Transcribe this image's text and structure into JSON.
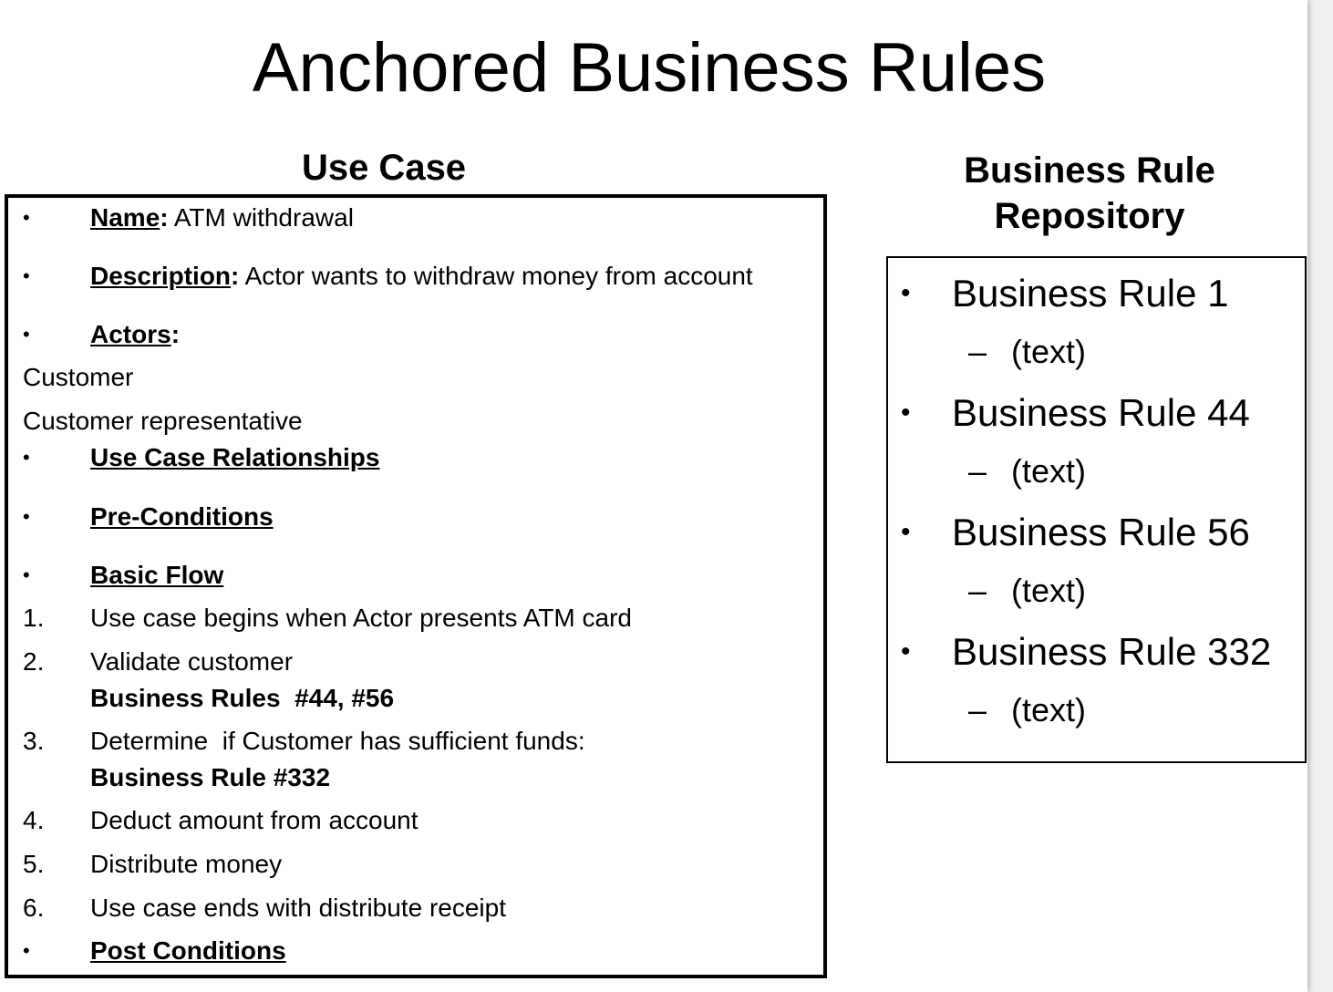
{
  "title": "Anchored Business Rules",
  "use_case": {
    "heading": "Use Case",
    "name_label": "Name",
    "name_value": "ATM withdrawal",
    "description_label": "Description",
    "description_value": "Actor wants to withdraw money from account",
    "actors_label": "Actors",
    "actors": [
      "Customer",
      "Customer representative"
    ],
    "relationships_label": "Use Case Relationships",
    "preconditions_label": "Pre-Conditions",
    "basic_flow_label": "Basic Flow",
    "steps": [
      {
        "num": "1.",
        "text": "Use case begins when Actor presents ATM card",
        "rule": ""
      },
      {
        "num": "2.",
        "text": "Validate customer",
        "rule": "Business Rules  #44, #56"
      },
      {
        "num": "3.",
        "text": "Determine  if Customer has sufficient funds:",
        "rule": "Business Rule #332"
      },
      {
        "num": "4.",
        "text": "Deduct amount from account",
        "rule": ""
      },
      {
        "num": "5.",
        "text": "Distribute money",
        "rule": ""
      },
      {
        "num": "6.",
        "text": "Use case ends with distribute receipt",
        "rule": ""
      }
    ],
    "postconditions_label": "Post Conditions"
  },
  "repository": {
    "heading_line1": "Business Rule",
    "heading_line2": "Repository",
    "rules": [
      {
        "name": "Business Rule 1",
        "text": "(text)"
      },
      {
        "name": "Business Rule 44",
        "text": "(text)"
      },
      {
        "name": "Business Rule 56",
        "text": "(text)"
      },
      {
        "name": "Business Rule 332",
        "text": "(text)"
      }
    ]
  }
}
